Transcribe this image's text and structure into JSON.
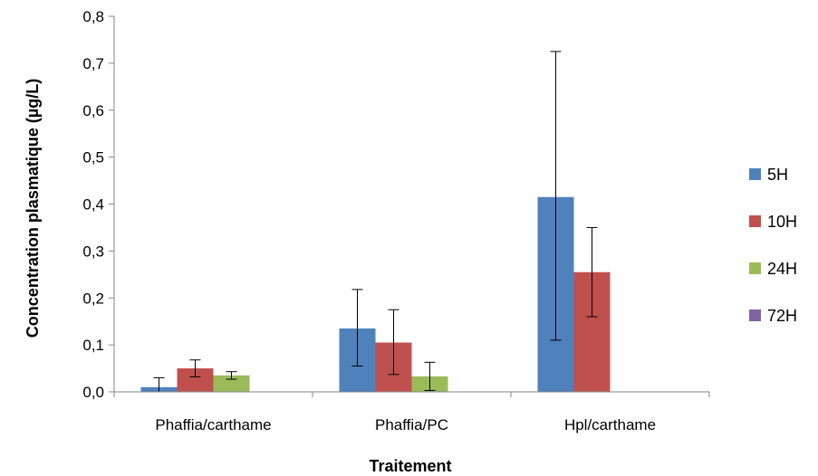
{
  "chart_data": {
    "type": "bar",
    "title": "",
    "xlabel": "Traitement",
    "ylabel": "Concentration plasmatique (µg/L)",
    "categories": [
      "Phaffia/carthame",
      "Phaffia/PC",
      "Hpl/carthame"
    ],
    "y_ticks": [
      "0,0",
      "0,1",
      "0,2",
      "0,3",
      "0,4",
      "0,5",
      "0,6",
      "0,7",
      "0,8"
    ],
    "ylim": [
      0,
      0.8
    ],
    "grid": false,
    "legend_position": "right",
    "series": [
      {
        "name": "5H",
        "color": "#4F81BD",
        "values": [
          0.01,
          0.135,
          0.415
        ],
        "err_low": [
          0.0,
          0.055,
          0.11
        ],
        "err_high": [
          0.03,
          0.218,
          0.725
        ]
      },
      {
        "name": "10H",
        "color": "#C0504D",
        "values": [
          0.05,
          0.105,
          0.255
        ],
        "err_low": [
          0.032,
          0.037,
          0.16
        ],
        "err_high": [
          0.068,
          0.175,
          0.35
        ]
      },
      {
        "name": "24H",
        "color": "#9BBB59",
        "values": [
          0.035,
          0.033,
          null
        ],
        "err_low": [
          0.027,
          0.003,
          null
        ],
        "err_high": [
          0.043,
          0.063,
          null
        ]
      },
      {
        "name": "72H",
        "color": "#8064A2",
        "values": [
          null,
          null,
          null
        ],
        "err_low": [
          null,
          null,
          null
        ],
        "err_high": [
          null,
          null,
          null
        ]
      }
    ]
  }
}
